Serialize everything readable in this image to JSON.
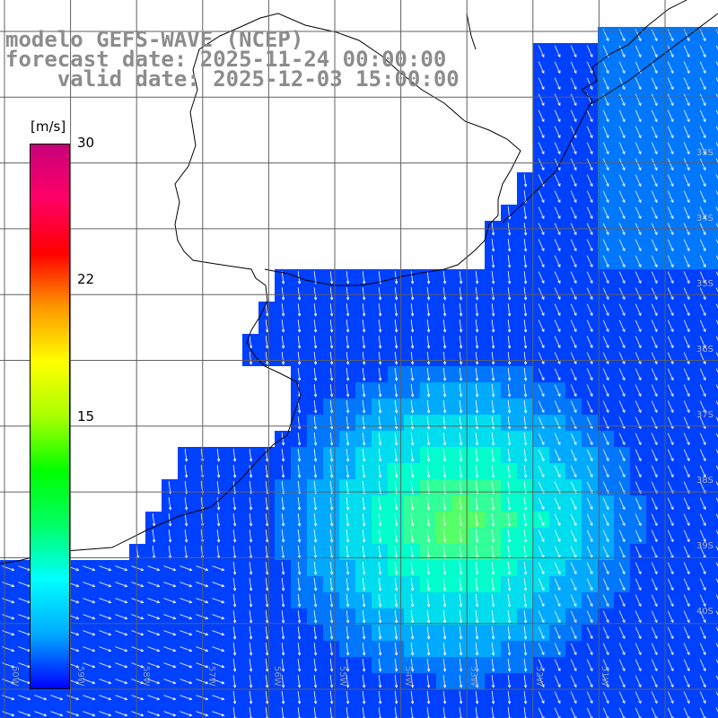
{
  "title": {
    "line1": "modelo GEFS-WAVE (NCEP)",
    "line2": "forecast date: 2025-11-24 00:00:00",
    "line3": "    valid date: 2025-12-03 15:00:00"
  },
  "colorbar": {
    "unit": "[m/s]",
    "min": 0,
    "max": 30,
    "labels": [
      "30",
      "22",
      "15"
    ],
    "colors": [
      "#0000ff",
      "#00aaff",
      "#00ffff",
      "#00ff66",
      "#00ff00",
      "#aaff00",
      "#ffff00",
      "#ff9900",
      "#ff0000",
      "#ff0066",
      "#c8007a"
    ]
  },
  "map": {
    "land_color": "#ffffff",
    "coast_color": "#000000",
    "grid_color": "#606060",
    "arrow_color": "#ffffff",
    "lat_labels": [
      "33S",
      "34S",
      "35S",
      "36S",
      "37S",
      "38S",
      "39S",
      "40S"
    ],
    "lon_labels": [
      "60W",
      "59W",
      "58W",
      "57W",
      "56W",
      "55W",
      "54W",
      "53W",
      "52W",
      "51W"
    ]
  }
}
